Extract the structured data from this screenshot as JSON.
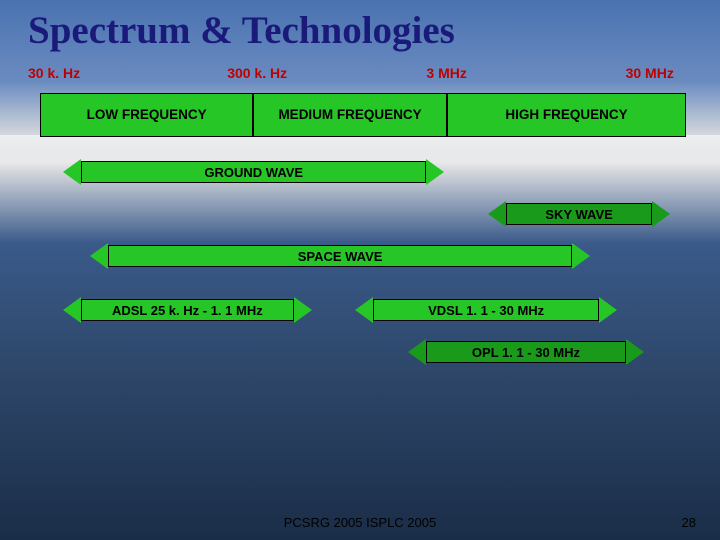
{
  "title": "Spectrum & Technologies",
  "freq_markers": [
    {
      "label": "30 k. Hz",
      "left_pct": 0
    },
    {
      "label": "300 k. Hz",
      "left_pct": 30
    },
    {
      "label": "3 MHz",
      "left_pct": 60
    },
    {
      "label": "30 MHz",
      "left_pct": 90
    }
  ],
  "bands": {
    "low": {
      "label": "LOW FREQUENCY",
      "bg": "#27c627"
    },
    "med": {
      "label": "MEDIUM FREQUENCY",
      "bg": "#27c627"
    },
    "high": {
      "label": "HIGH FREQUENCY",
      "bg": "#27c627"
    }
  },
  "arrows": [
    {
      "label": "GROUND WAVE",
      "left_pct": 8,
      "width_pct": 52,
      "bg": "#27c627",
      "arrow": "#27c627"
    },
    {
      "label": "SKY WAVE",
      "left_pct": 72,
      "width_pct": 22,
      "bg": "#1a9a1a",
      "arrow": "#1a9a1a"
    },
    {
      "label": "SPACE WAVE",
      "left_pct": 12,
      "width_pct": 70,
      "bg": "#27c627",
      "arrow": "#27c627"
    }
  ],
  "tech_arrows": [
    {
      "label": "ADSL 25 k. Hz - 1. 1 MHz",
      "left_pct": 8,
      "width_pct": 32,
      "bg": "#27c627"
    },
    {
      "label": "VDSL 1. 1 - 30 MHz",
      "left_pct": 52,
      "width_pct": 34,
      "bg": "#27c627"
    }
  ],
  "opl_arrow": {
    "label": "OPL 1. 1 - 30 MHz",
    "left_pct": 60,
    "width_pct": 30,
    "bg": "#1a9a1a"
  },
  "footer": "PCSRG 2005 ISPLC 2005",
  "page_number": "28",
  "colors": {
    "title": "#1a1a7a",
    "freq_text": "#c00000",
    "arrow_border": "#000000"
  }
}
